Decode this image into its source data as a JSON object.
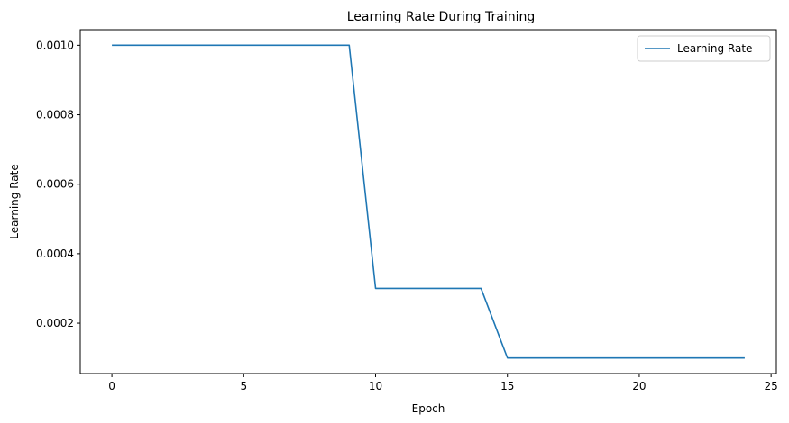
{
  "chart_data": {
    "type": "line",
    "title": "Learning Rate During Training",
    "xlabel": "Epoch",
    "ylabel": "Learning Rate",
    "xlim": [
      -1.2,
      25.2
    ],
    "ylim": [
      5.5e-05,
      0.001045
    ],
    "xticks": [
      0,
      5,
      10,
      15,
      20,
      25
    ],
    "xtick_labels": [
      "0",
      "5",
      "10",
      "15",
      "20",
      "25"
    ],
    "yticks": [
      0.0002,
      0.0004,
      0.0006,
      0.0008,
      0.001
    ],
    "ytick_labels": [
      "0.0002",
      "0.0004",
      "0.0006",
      "0.0008",
      "0.0010"
    ],
    "grid": false,
    "legend_position": "top-right",
    "x": [
      0,
      1,
      2,
      3,
      4,
      5,
      6,
      7,
      8,
      9,
      10,
      11,
      12,
      13,
      14,
      15,
      16,
      17,
      18,
      19,
      20,
      21,
      22,
      23,
      24
    ],
    "series": [
      {
        "name": "Learning Rate",
        "color": "#1f77b4",
        "values": [
          0.001,
          0.001,
          0.001,
          0.001,
          0.001,
          0.001,
          0.001,
          0.001,
          0.001,
          0.001,
          0.0003,
          0.0003,
          0.0003,
          0.0003,
          0.0003,
          0.0001,
          0.0001,
          0.0001,
          0.0001,
          0.0001,
          0.0001,
          0.0001,
          0.0001,
          0.0001,
          0.0001
        ]
      }
    ]
  }
}
